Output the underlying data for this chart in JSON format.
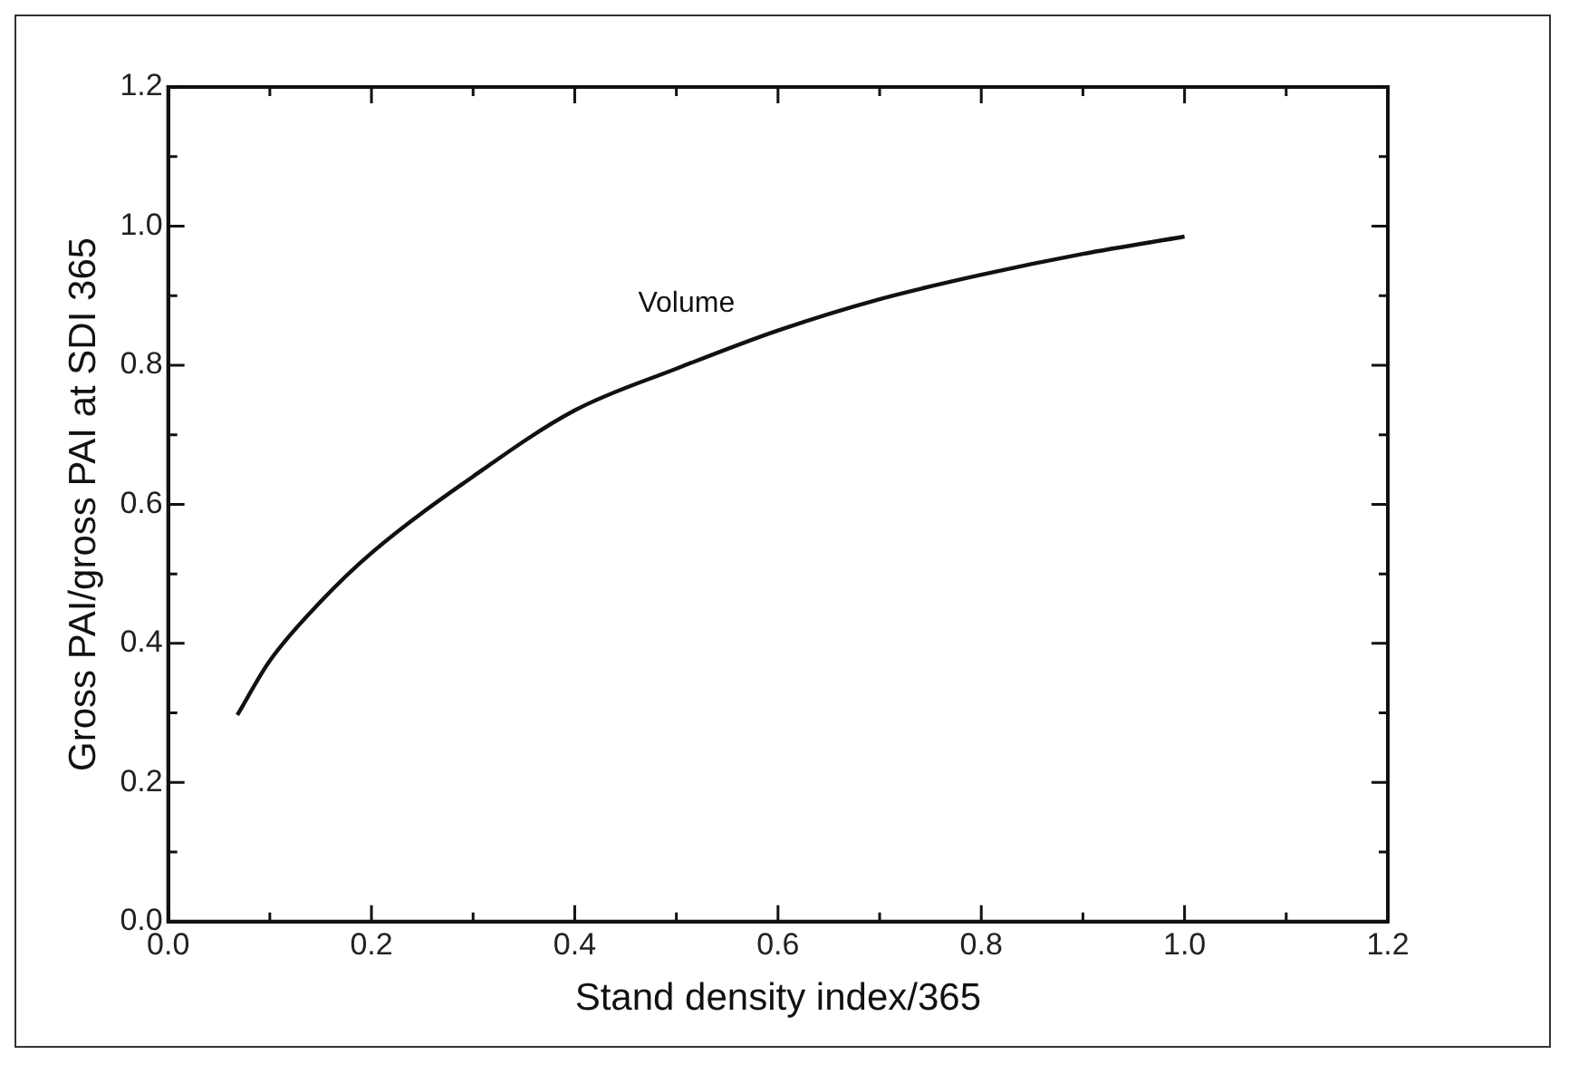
{
  "chart_data": {
    "type": "line",
    "xlabel": "Stand density index/365",
    "ylabel": "Gross PAI/gross PAI at SDI 365",
    "x": [
      0.068,
      0.1,
      0.15,
      0.2,
      0.3,
      0.4,
      0.5,
      0.6,
      0.7,
      0.8,
      0.9,
      1.0
    ],
    "series": [
      {
        "color": "#111111",
        "values": [
          0.297,
          0.375,
          0.46,
          0.53,
          0.64,
          0.735,
          0.795,
          0.85,
          0.895,
          0.93,
          0.96,
          0.985
        ]
      }
    ],
    "xlim": [
      0,
      1.2
    ],
    "xticks": [
      "0.0",
      0.2,
      0.4,
      0.6,
      0.8,
      "1.0",
      1.2
    ],
    "ylim": [
      0,
      1.2
    ],
    "yticks": [
      "0.0",
      0.2,
      0.4,
      0.6,
      0.8,
      "1.0",
      1.2
    ],
    "annotations": [
      "Volume"
    ],
    "grid": false,
    "legend": false,
    "marker": "none",
    "line_style": "solid"
  }
}
